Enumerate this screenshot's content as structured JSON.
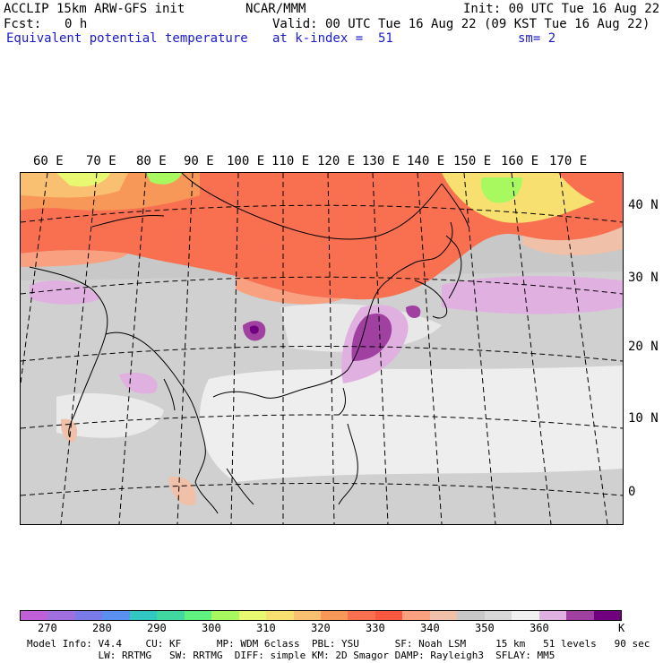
{
  "header": {
    "model": "ACCLIP 15km ARW-GFS init",
    "org": "NCAR/MMM",
    "init": "Init: 00 UTC Tue 16 Aug 22",
    "fcst_label": "Fcst:",
    "fcst_value": "0 h",
    "valid": "Valid: 00 UTC Tue 16 Aug 22 (09 KST Tue 16 Aug 22)",
    "field": "Equivalent potential temperature",
    "level": "at k-index =  51",
    "smoothing": "sm= 2"
  },
  "map": {
    "lon_labels": [
      "60 E",
      "70 E",
      "80 E",
      "90 E",
      "100 E",
      "110 E",
      "120 E",
      "130 E",
      "140 E",
      "150 E",
      "160 E",
      "170 E"
    ],
    "lat_labels": [
      "40 N",
      "30 N",
      "20 N",
      "10 N",
      "0"
    ]
  },
  "colorbar": {
    "colors": [
      "#c060d8",
      "#a070e0",
      "#7a7ae8",
      "#5a90f0",
      "#30c8c0",
      "#40d8a0",
      "#60f080",
      "#a8f860",
      "#e8f870",
      "#f8e070",
      "#f8c070",
      "#f89858",
      "#f87050",
      "#f85840",
      "#f8a080",
      "#f0c0a8",
      "#c8c8c8",
      "#d8d8d8",
      "#f0f0f0",
      "#e0b0e0",
      "#a040a0",
      "#700080"
    ],
    "labels": [
      "270",
      "280",
      "290",
      "300",
      "310",
      "320",
      "330",
      "340",
      "350",
      "360"
    ],
    "unit": "K"
  },
  "model_info": {
    "line1": "Model Info: V4.4    CU: KF      MP: WDM 6class  PBL: YSU      SF: Noah LSM     15 km   51 levels   90 sec",
    "line2": "            LW: RRTMG   SW: RRTMG  DIFF: simple KM: 2D Smagor DAMP: Rayleigh3  SFLAY: MM5"
  }
}
